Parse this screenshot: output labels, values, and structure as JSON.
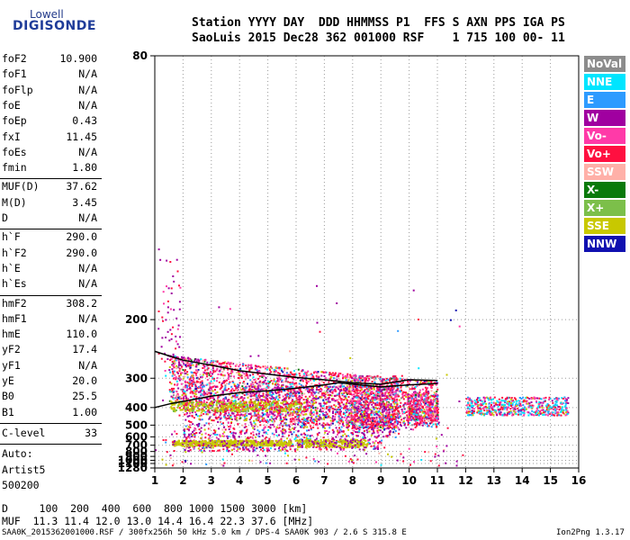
{
  "logo": {
    "line1": "Lowell",
    "line2": "DIGISONDE"
  },
  "header": {
    "line1": "Station YYYY DAY  DDD HHMMSS P1  FFS S AXN PPS IGA PS",
    "line2": "SaoLuis 2015 Dec28 362 001000 RSF    1 715 100 00- 11"
  },
  "params_top": [
    {
      "k": "foF2",
      "v": "10.900"
    },
    {
      "k": "foF1",
      "v": "N/A"
    },
    {
      "k": "foFlp",
      "v": "N/A"
    },
    {
      "k": "foE",
      "v": "N/A"
    },
    {
      "k": "foEp",
      "v": "0.43"
    },
    {
      "k": "fxI",
      "v": "11.45"
    },
    {
      "k": "foEs",
      "v": "N/A"
    },
    {
      "k": "fmin",
      "v": "1.80"
    }
  ],
  "params_muf": [
    {
      "k": "MUF(D)",
      "v": "37.62"
    },
    {
      "k": "M(D)",
      "v": "3.45"
    },
    {
      "k": "D",
      "v": "N/A"
    }
  ],
  "params_h": [
    {
      "k": "h`F",
      "v": "290.0"
    },
    {
      "k": "h`F2",
      "v": "290.0"
    },
    {
      "k": "h`E",
      "v": "N/A"
    },
    {
      "k": "h`Es",
      "v": "N/A"
    }
  ],
  "params_hm": [
    {
      "k": "hmF2",
      "v": "308.2"
    },
    {
      "k": "hmF1",
      "v": "N/A"
    },
    {
      "k": "hmE",
      "v": "110.0"
    },
    {
      "k": "yF2",
      "v": "17.4"
    },
    {
      "k": "yF1",
      "v": "N/A"
    },
    {
      "k": "yE",
      "v": "20.0"
    },
    {
      "k": "B0",
      "v": "25.5"
    },
    {
      "k": "B1",
      "v": "1.00"
    }
  ],
  "c_level": {
    "k": "C-level",
    "v": "33"
  },
  "auto": {
    "line1": "Auto:",
    "line2": "Artist5",
    "line3": "500200"
  },
  "legend": [
    {
      "label": "NoVal",
      "bg": "#8c8c8c",
      "fg": "#ffffff"
    },
    {
      "label": "NNE",
      "bg": "#00e5ff",
      "fg": "#ffffff"
    },
    {
      "label": "E",
      "bg": "#2e9bff",
      "fg": "#ffffff"
    },
    {
      "label": "W",
      "bg": "#a000a0",
      "fg": "#ffffff"
    },
    {
      "label": "Vo-",
      "bg": "#ff3aa8",
      "fg": "#ffffff"
    },
    {
      "label": "Vo+",
      "bg": "#ff1040",
      "fg": "#ffffff"
    },
    {
      "label": "SSW",
      "bg": "#ffb0a8",
      "fg": "#ffffff"
    },
    {
      "label": "X-",
      "bg": "#0a7a0a",
      "fg": "#ffffff"
    },
    {
      "label": "X+",
      "bg": "#7cbf4a",
      "fg": "#ffffff"
    },
    {
      "label": "SSE",
      "bg": "#c8c800",
      "fg": "#ffffff"
    },
    {
      "label": "NNW",
      "bg": "#1010b0",
      "fg": "#ffffff"
    }
  ],
  "bottom": {
    "d_line": "D     100  200  400  600  800 1000 1500 3000 [km]",
    "muf_line": "MUF  11.3 11.4 12.0 13.0 14.4 16.4 22.3 37.6 [MHz]",
    "footer_left": "SAA0K_2015362001000.RSF / 300fx256h 50 kHz 5.0 km / DPS-4 SAA0K 903 / 2.6 S 315.8 E",
    "footer_right": "Ion2Png 1.3.17"
  },
  "chart_data": {
    "type": "scatter",
    "title": "",
    "xlabel": "",
    "ylabel": "",
    "xlim": [
      1,
      16
    ],
    "ylim": [
      80,
      1280
    ],
    "x_ticks": [
      "1",
      "2",
      "3",
      "4",
      "5",
      "6",
      "7",
      "8",
      "9",
      "10",
      "11",
      "12",
      "13",
      "14",
      "15",
      "16"
    ],
    "y_ticks": [
      "80",
      "200",
      "300",
      "400",
      "500",
      "600",
      "700",
      "800",
      "900",
      "1000",
      "1100",
      "1280"
    ],
    "y_scale": "reciprocal",
    "grid": true,
    "traces": [
      {
        "x": [
          1.0,
          1.5,
          2.0,
          3.0,
          4.0,
          5.0,
          6.0,
          7.0,
          8.0,
          9.0,
          10.0,
          11.0
        ],
        "y": [
          244,
          252,
          260,
          270,
          282,
          290,
          298,
          304,
          312,
          316,
          304,
          306
        ]
      },
      {
        "x": [
          1.0,
          1.6,
          2.2,
          3.0,
          4.0,
          5.0,
          6.0,
          7.0,
          7.5,
          8.0,
          9.0,
          10.0,
          11.0
        ],
        "y": [
          400,
          382,
          370,
          354,
          342,
          336,
          328,
          318,
          312,
          316,
          324,
          318,
          314
        ]
      }
    ]
  }
}
